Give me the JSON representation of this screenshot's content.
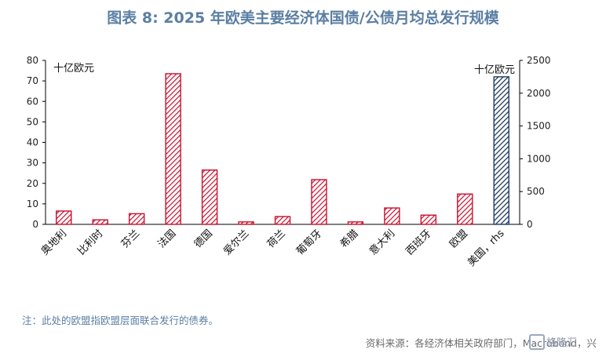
{
  "header": {
    "title": "图表 8:  2025 年欧美主要经济体国债/公债月均总发行规模"
  },
  "chart_data": {
    "type": "bar",
    "categories": [
      "奥地利",
      "比利时",
      "芬兰",
      "法国",
      "德国",
      "爱尔兰",
      "荷兰",
      "葡萄牙",
      "希腊",
      "意大利",
      "西班牙",
      "欧盟",
      "美国，rhs"
    ],
    "series": [
      {
        "values": [
          6.5,
          2.2,
          5.2,
          73.5,
          26.5,
          1.2,
          3.8,
          21.8,
          1.2,
          8.0,
          4.5,
          14.8,
          null
        ],
        "axis": "left",
        "color": "#c8102e"
      },
      {
        "values": [
          null,
          null,
          null,
          null,
          null,
          null,
          null,
          null,
          null,
          null,
          null,
          null,
          2250
        ],
        "axis": "right",
        "color": "#1f3a5f"
      }
    ],
    "y_left": {
      "range": [
        0,
        80
      ],
      "ticks": [
        "0",
        "10",
        "20",
        "30",
        "40",
        "50",
        "60",
        "70",
        "80"
      ],
      "unit": "十亿欧元"
    },
    "y_right": {
      "range": [
        0,
        2500
      ],
      "ticks": [
        "0",
        "500",
        "1000",
        "1500",
        "2000",
        "2500"
      ],
      "unit": "十亿欧元"
    },
    "grid": false,
    "legend": "none"
  },
  "footer": {
    "note": "注：此处的欧盟指欧盟层面联合发行的债券。",
    "source": "资料来源：各经济体相关政府部门，Macrobond，兴",
    "watermark": "格隆汇"
  }
}
